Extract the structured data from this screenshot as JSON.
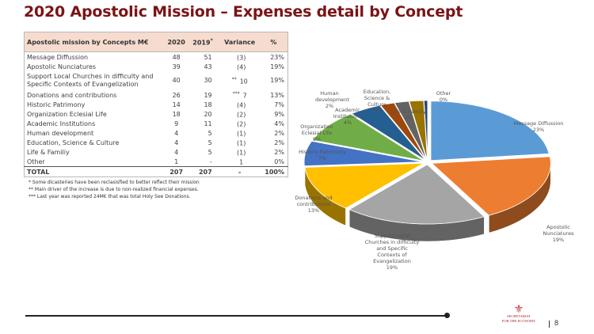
{
  "page": {
    "title": "2020 Apostolic Mission – Expenses detail by Concept",
    "page_number": "8",
    "logo_text_line1": "SECRETARIAT",
    "logo_text_line2": "FOR THE ECONOMY"
  },
  "table": {
    "headers": [
      "Apostolic mission by Concepts M€",
      "2020",
      "2019",
      "Variance",
      "%"
    ],
    "header_2019_mark": "*",
    "rows": [
      {
        "concept": "Message Diffussion",
        "y2020": "48",
        "y2019": "51",
        "mark": "",
        "variance": "(3)",
        "pct": "23%"
      },
      {
        "concept": "Apostolic Nunciatures",
        "y2020": "39",
        "y2019": "43",
        "mark": "",
        "variance": "(4)",
        "pct": "19%"
      },
      {
        "concept": "Support Local Churches in difficulty and Specific Contexts of Evangelization",
        "y2020": "40",
        "y2019": "30",
        "mark": "**",
        "variance": "10",
        "pct": "19%"
      },
      {
        "concept": "Donations and contributions",
        "y2020": "26",
        "y2019": "19",
        "mark": "***",
        "variance": "7",
        "pct": "13%"
      },
      {
        "concept": "Historic Patrimony",
        "y2020": "14",
        "y2019": "18",
        "mark": "",
        "variance": "(4)",
        "pct": "7%"
      },
      {
        "concept": "Organization Eclesial Life",
        "y2020": "18",
        "y2019": "20",
        "mark": "",
        "variance": "(2)",
        "pct": "9%"
      },
      {
        "concept": "Academic Institutions",
        "y2020": "9",
        "y2019": "11",
        "mark": "",
        "variance": "(2)",
        "pct": "4%"
      },
      {
        "concept": "Human development",
        "y2020": "4",
        "y2019": "5",
        "mark": "",
        "variance": "(1)",
        "pct": "2%"
      },
      {
        "concept": "Education, Science & Culture",
        "y2020": "4",
        "y2019": "5",
        "mark": "",
        "variance": "(1)",
        "pct": "2%"
      },
      {
        "concept": "Life & Familiy",
        "y2020": "4",
        "y2019": "5",
        "mark": "",
        "variance": "(1)",
        "pct": "2%"
      },
      {
        "concept": "Other",
        "y2020": "1",
        "y2019": "-",
        "mark": "",
        "variance": "1",
        "pct": "0%"
      }
    ],
    "total": {
      "concept": "TOTAL",
      "y2020": "207",
      "y2019": "207",
      "variance": "-",
      "pct": "100%"
    }
  },
  "notes": [
    "* Some dicasteries have been reclasisfied to better reflect their mission",
    "** Main driver of the increase is due to non-realized financial expenses.",
    "*** Last year was reported 24M€ that was total Holy See Donations."
  ],
  "chart_data": {
    "type": "pie",
    "title": "",
    "style": "3d exploded pie",
    "categories": [
      "Message Diffussion",
      "Apostolic Nunciatures",
      "Support Local Churches in difficulty and Specific Contexts of Evangelization",
      "Donations and contributions",
      "Historic Patrimony",
      "Organization Eclesial Life",
      "Academic Institutions",
      "Human development",
      "Education, Science & Culture",
      "Life & Familiy",
      "Other"
    ],
    "values": [
      48,
      39,
      40,
      26,
      14,
      18,
      9,
      4,
      4,
      4,
      1
    ],
    "percent_labels": [
      "23%",
      "19%",
      "19%",
      "13%",
      "7%",
      "9%",
      "4%",
      "2%",
      "2%",
      "2%",
      "0%"
    ],
    "colors": [
      "#5b9bd5",
      "#ed7d31",
      "#a5a5a5",
      "#ffc000",
      "#4472c4",
      "#70ad47",
      "#255e91",
      "#9e480e",
      "#636363",
      "#997300",
      "#264478"
    ],
    "legend": "none (data labels on slices)"
  }
}
